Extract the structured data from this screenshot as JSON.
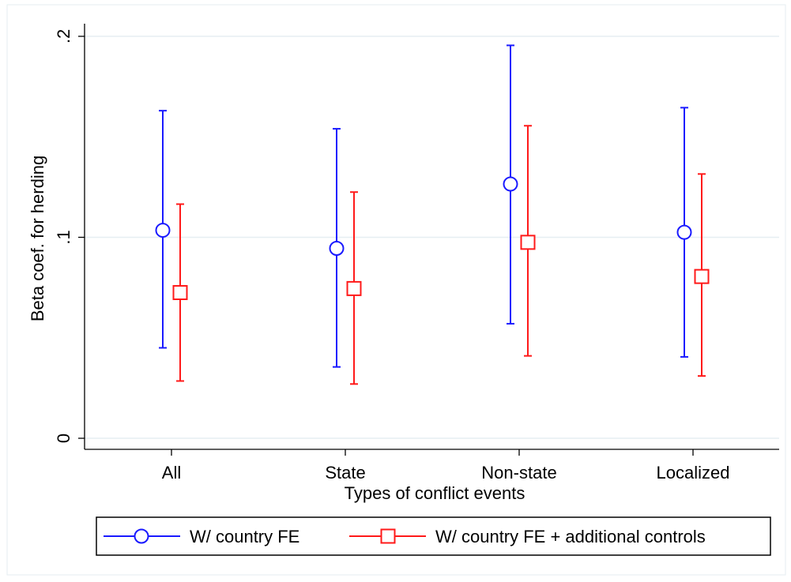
{
  "chart_data": {
    "type": "scatter",
    "subtype": "coefficient plot with confidence intervals",
    "title": "",
    "xlabel": "Types of conflict events",
    "ylabel": "Beta coef. for herding",
    "categories": [
      "All",
      "State",
      "Non-state",
      "Localized"
    ],
    "ylim": [
      0,
      0.2
    ],
    "yticks": [
      {
        "value": 0,
        "label": "0"
      },
      {
        "value": 0.1,
        "label": ".1"
      },
      {
        "value": 0.2,
        "label": ".2"
      }
    ],
    "grid": true,
    "legend_position": "bottom",
    "series": [
      {
        "name": "W/ country FE",
        "marker": "circle",
        "color": "#1a1aff",
        "values": [
          0.1035,
          0.0945,
          0.1265,
          0.1025
        ],
        "ci_low": [
          0.045,
          0.0355,
          0.057,
          0.0405
        ],
        "ci_high": [
          0.163,
          0.154,
          0.1955,
          0.1645
        ]
      },
      {
        "name": "W/ country FE + additional controls",
        "marker": "square",
        "color": "#ff1a1a",
        "values": [
          0.0725,
          0.0745,
          0.0975,
          0.0805
        ],
        "ci_low": [
          0.0285,
          0.027,
          0.041,
          0.031
        ],
        "ci_high": [
          0.1165,
          0.1225,
          0.1555,
          0.1315
        ]
      }
    ]
  }
}
